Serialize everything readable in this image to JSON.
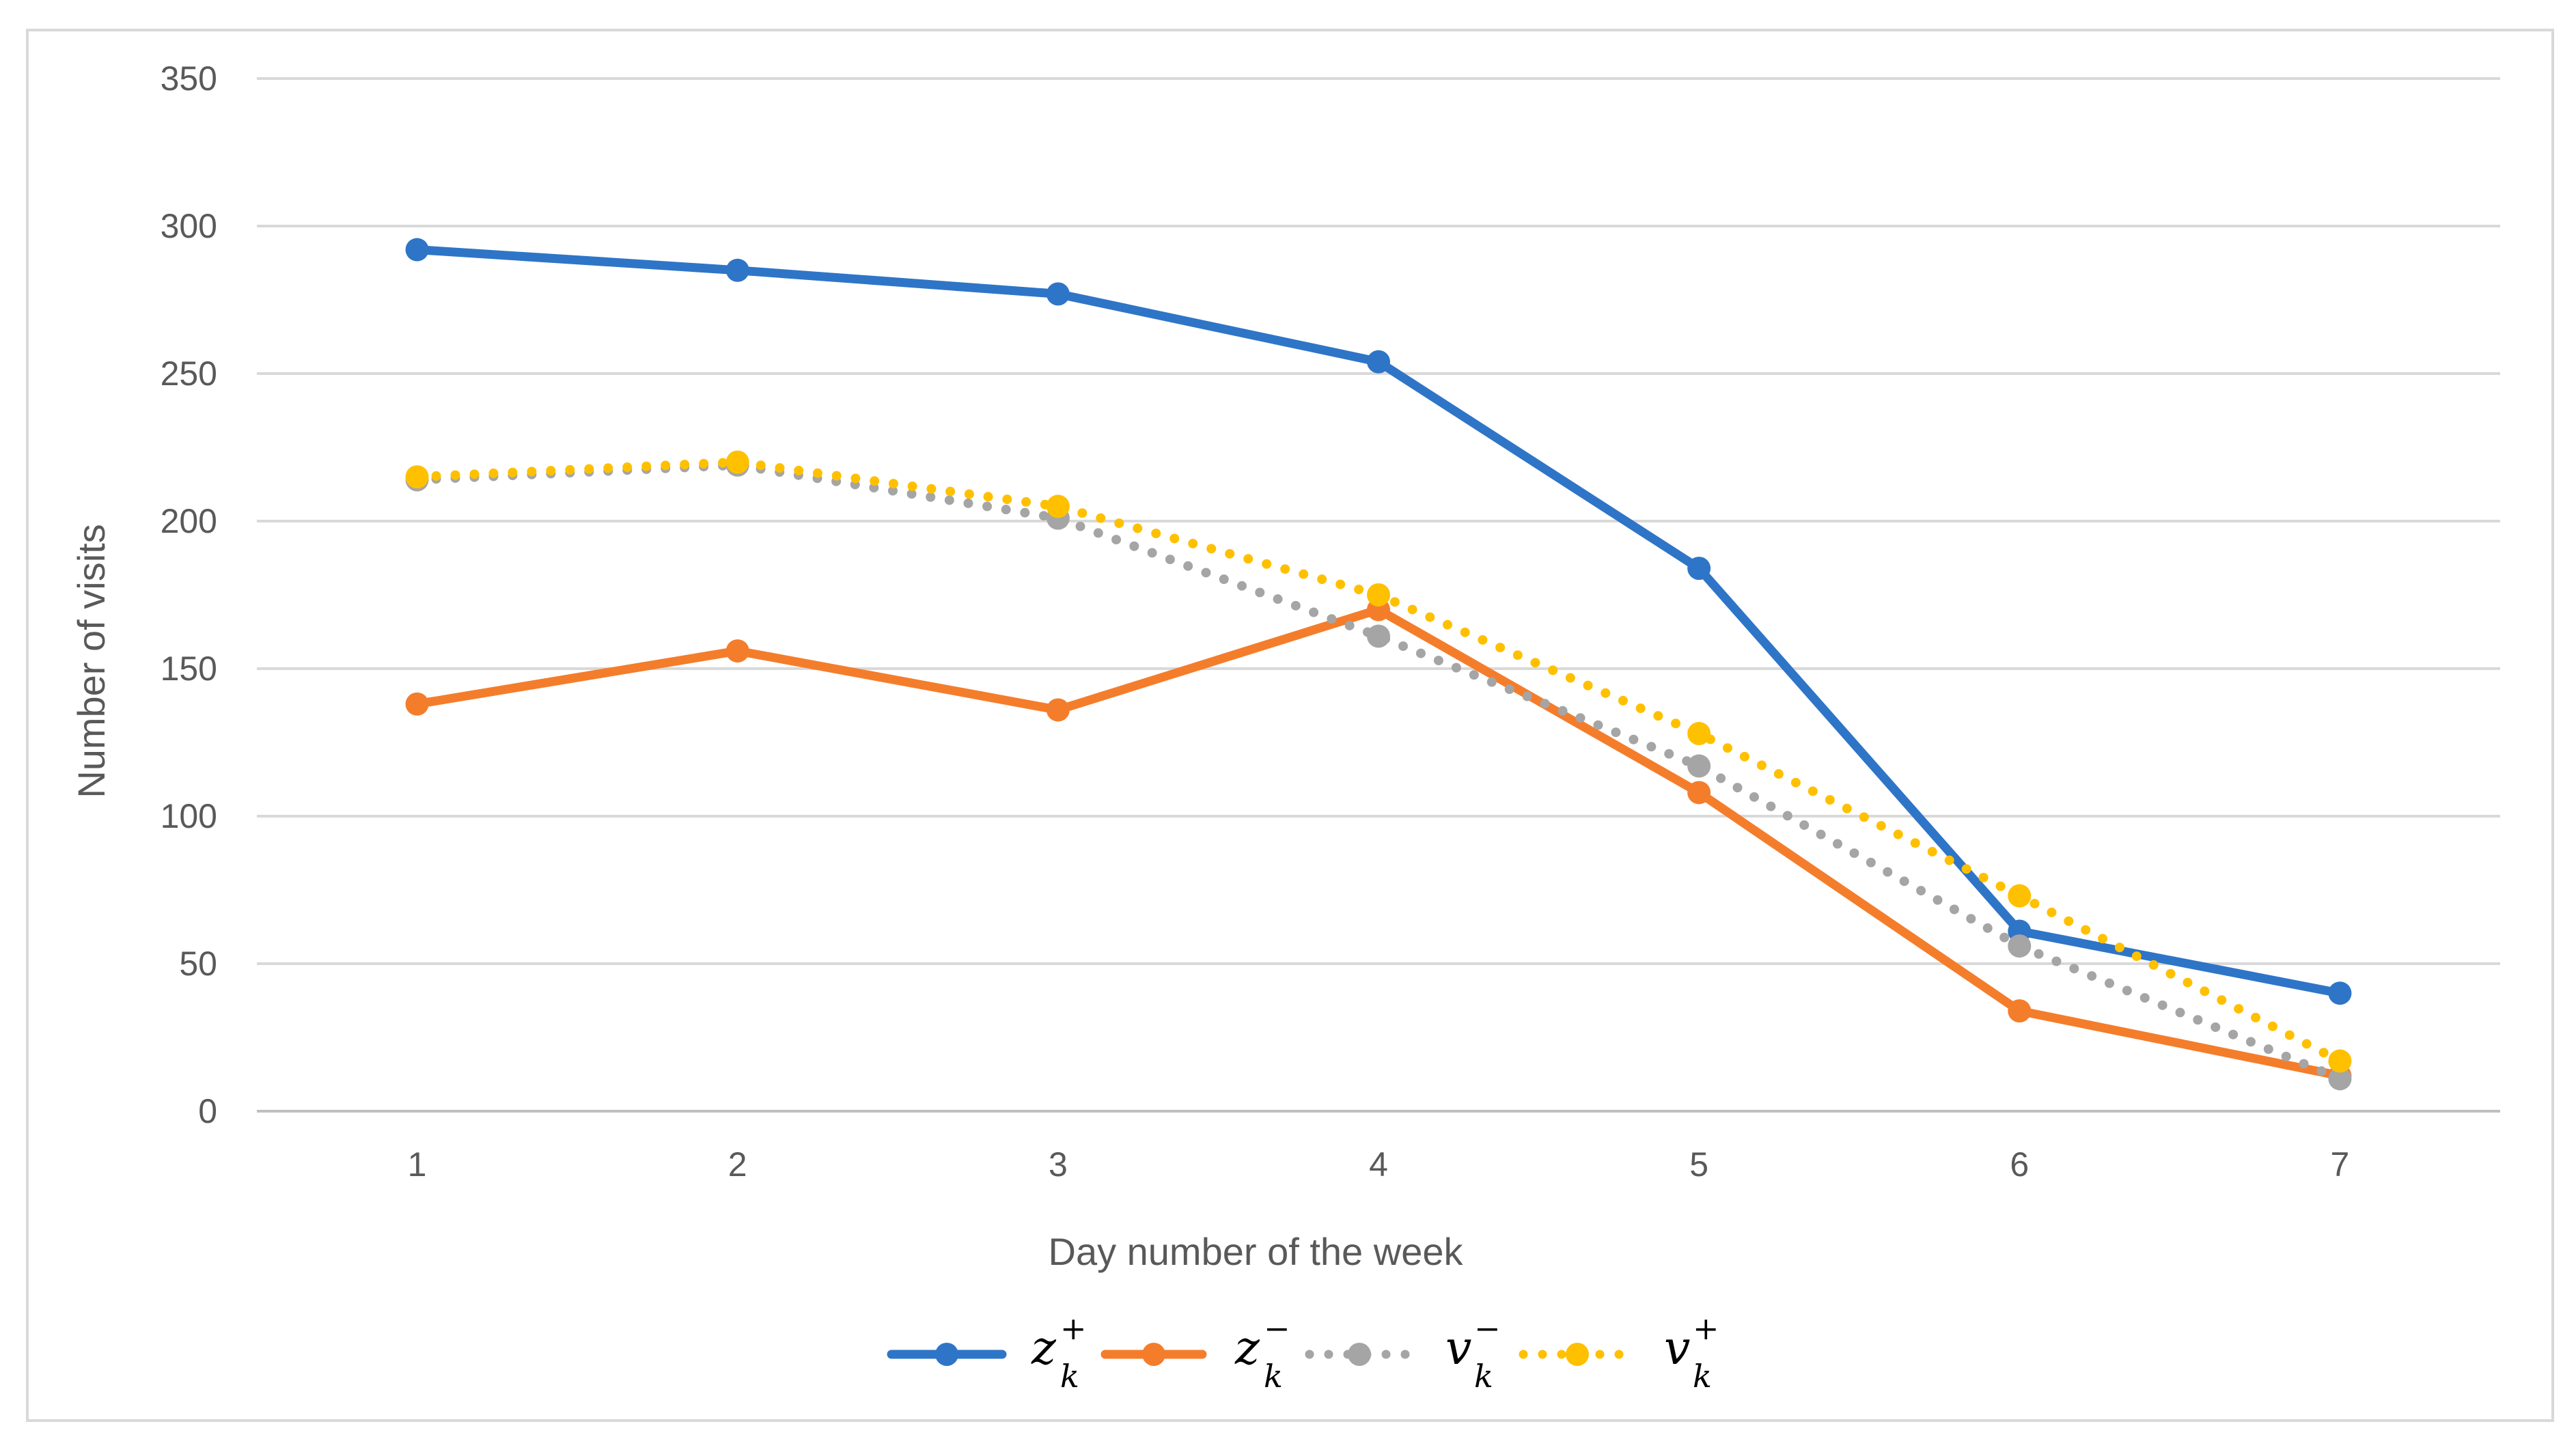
{
  "chart_data": {
    "type": "line",
    "title": "",
    "xlabel": "Day number of the week",
    "ylabel": "Number of visits",
    "categories": [
      "1",
      "2",
      "3",
      "4",
      "5",
      "6",
      "7"
    ],
    "ylim": [
      0,
      350
    ],
    "yticks": [
      0,
      50,
      100,
      150,
      200,
      250,
      300,
      350
    ],
    "grid": "horizontal",
    "legend_position": "bottom",
    "series": [
      {
        "name": "z_k^+",
        "symbol": "z",
        "subscript": "k",
        "superscript": "+",
        "color": "#2e75c7",
        "style": "solid",
        "values": [
          292,
          285,
          277,
          254,
          184,
          61,
          40
        ]
      },
      {
        "name": "z_k^-",
        "symbol": "z",
        "subscript": "k",
        "superscript": "−",
        "color": "#f47d2b",
        "style": "solid",
        "values": [
          138,
          156,
          136,
          170,
          108,
          34,
          12
        ]
      },
      {
        "name": "v_k^-",
        "symbol": "v",
        "subscript": "k",
        "superscript": "−",
        "color": "#a5a5a5",
        "style": "dotted",
        "values": [
          214,
          219,
          201,
          161,
          117,
          56,
          11
        ]
      },
      {
        "name": "v_k^+",
        "symbol": "v",
        "subscript": "k",
        "superscript": "+",
        "color": "#ffc000",
        "style": "dotted",
        "values": [
          215,
          220,
          205,
          175,
          128,
          73,
          17
        ]
      }
    ]
  }
}
